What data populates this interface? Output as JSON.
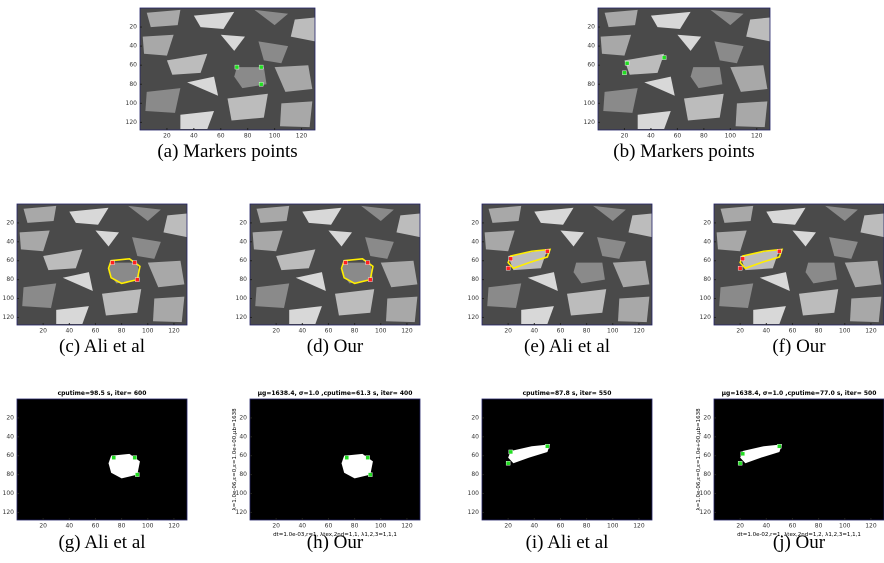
{
  "panels": [
    {
      "caption": "(a)  Markers points",
      "xlim": [
        0,
        130
      ],
      "ylim": [
        0,
        128
      ],
      "xticks": [
        20,
        40,
        60,
        80,
        100,
        120
      ],
      "yticks": [
        20,
        40,
        60,
        80,
        100,
        120
      ]
    },
    {
      "caption": "(b)  Markers points",
      "xlim": [
        0,
        130
      ],
      "ylim": [
        0,
        128
      ],
      "xticks": [
        20,
        40,
        60,
        80,
        100,
        120
      ],
      "yticks": [
        20,
        40,
        60,
        80,
        100,
        120
      ]
    },
    {
      "caption": "(c)  Ali et al",
      "xlim": [
        0,
        130
      ],
      "ylim": [
        0,
        128
      ],
      "xticks": [
        20,
        40,
        60,
        80,
        100,
        120
      ],
      "yticks": [
        20,
        40,
        60,
        80,
        100,
        120
      ]
    },
    {
      "caption": "(d)  Our",
      "xlim": [
        0,
        130
      ],
      "ylim": [
        0,
        128
      ],
      "xticks": [
        20,
        40,
        60,
        80,
        100,
        120
      ],
      "yticks": [
        20,
        40,
        60,
        80,
        100,
        120
      ]
    },
    {
      "caption": "(e)  Ali et al",
      "xlim": [
        0,
        130
      ],
      "ylim": [
        0,
        128
      ],
      "xticks": [
        20,
        40,
        60,
        80,
        100,
        120
      ],
      "yticks": [
        20,
        40,
        60,
        80,
        100,
        120
      ]
    },
    {
      "caption": "(f)  Our",
      "xlim": [
        0,
        130
      ],
      "ylim": [
        0,
        128
      ],
      "xticks": [
        20,
        40,
        60,
        80,
        100,
        120
      ],
      "yticks": [
        20,
        40,
        60,
        80,
        100,
        120
      ]
    },
    {
      "caption": "(g)  Ali et al",
      "title": "cputime=98.5 s, iter= 600",
      "xlim": [
        0,
        130
      ],
      "ylim": [
        0,
        128
      ],
      "xticks": [
        20,
        40,
        60,
        80,
        100,
        120
      ],
      "yticks": [
        20,
        40,
        60,
        80,
        100,
        120
      ]
    },
    {
      "caption": "(h)  Our",
      "title": "μg=1638.4, σ=1.0 ,cputime=61.3 s, iter= 400",
      "ylabel": "λ=1.0e-06,ε=0,ε=1.0e+00,μb=1638",
      "xlabel": "dt=1.0e-03,r=1, λtex,2nd=1,1, λ1,2,3=1,1,1",
      "xlim": [
        0,
        130
      ],
      "ylim": [
        0,
        128
      ],
      "xticks": [
        20,
        40,
        60,
        80,
        100,
        120
      ],
      "yticks": [
        20,
        40,
        60,
        80,
        100,
        120
      ]
    },
    {
      "caption": "(i)  Ali et al",
      "title": "cputime=87.8 s, iter= 550",
      "xlim": [
        0,
        130
      ],
      "ylim": [
        0,
        128
      ],
      "xticks": [
        20,
        40,
        60,
        80,
        100,
        120
      ],
      "yticks": [
        20,
        40,
        60,
        80,
        100,
        120
      ]
    },
    {
      "caption": "(j)  Our",
      "title": "μg=1638.4, σ=1.0 ,cputime=77.0 s, iter= 500",
      "ylabel": "λ=1.0e-06,ε=0,ε=1.0e+00,μb=1638",
      "xlabel": "dt=1.0e-02,r=1, λtex,2nd=1,2, λ1,2,3=1,1,1",
      "xlim": [
        0,
        130
      ],
      "ylim": [
        0,
        128
      ],
      "xticks": [
        20,
        40,
        60,
        80,
        100,
        120
      ],
      "yticks": [
        20,
        40,
        60,
        80,
        100,
        120
      ]
    }
  ]
}
